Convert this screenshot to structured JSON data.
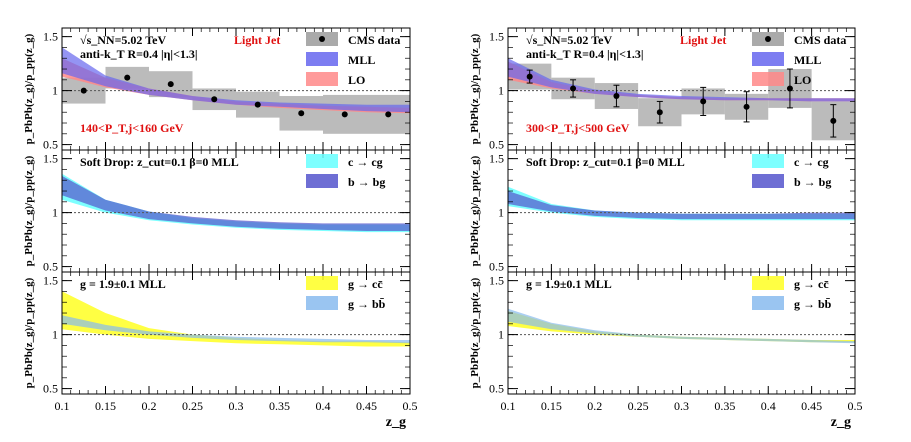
{
  "figure": {
    "columns": [
      {
        "xlabel": "z_g",
        "panels": [
          {
            "annotations": [
              {
                "text": "√s_NN=5.02 TeV",
                "pos": "top-left"
              },
              {
                "text": "anti-k_T R=0.4 |η|<1.3|",
                "pos": "top-left-2"
              },
              {
                "text": "Light Jet",
                "pos": "top-center",
                "color": "#e01010"
              },
              {
                "text": "140<P_T,j<160 GeV",
                "pos": "bottom-left",
                "color": "#e01010"
              }
            ],
            "legend": [
              "CMS data",
              "MLL",
              "LO"
            ]
          },
          {
            "annotations": [
              {
                "text": "Soft Drop: z_cut=0.1 β=0    MLL",
                "pos": "top-left"
              }
            ],
            "legend": [
              "c → cg",
              "b → bg"
            ]
          },
          {
            "annotations": [
              {
                "text": "g = 1.9±0.1    MLL",
                "pos": "top-left"
              }
            ],
            "legend": [
              "g → cc̄",
              "g → bb̄"
            ]
          }
        ]
      },
      {
        "xlabel": "z_g",
        "panels": [
          {
            "annotations": [
              {
                "text": "√s_NN=5.02 TeV",
                "pos": "top-left"
              },
              {
                "text": "anti-k_T R=0.4 |η|<1.3|",
                "pos": "top-left-2"
              },
              {
                "text": "Light Jet",
                "pos": "top-center",
                "color": "#e01010"
              },
              {
                "text": "300<P_T,j<500 GeV",
                "pos": "bottom-left",
                "color": "#e01010"
              }
            ],
            "legend": [
              "CMS data",
              "MLL",
              "LO"
            ]
          },
          {
            "annotations": [
              {
                "text": "Soft Drop: z_cut=0.1 β=0    MLL",
                "pos": "top-left"
              }
            ],
            "legend": [
              "c → cg",
              "b → bg"
            ]
          },
          {
            "annotations": [
              {
                "text": "g = 1.9±0.1    MLL",
                "pos": "top-left"
              }
            ],
            "legend": [
              "g → cc̄",
              "g → bb̄"
            ]
          }
        ]
      }
    ]
  },
  "chart_data": [
    {
      "type": "band",
      "panel": "left-top",
      "xlabel": "",
      "ylabel": "p_PbPb(z_g)/p_pp(z_g)",
      "xlim": [
        0.1,
        0.5
      ],
      "ylim": [
        0.45,
        1.58
      ],
      "x_ticks": [
        0.1,
        0.15,
        0.2,
        0.25,
        0.3,
        0.35,
        0.4,
        0.45,
        0.5
      ],
      "y_ticks": [
        0.5,
        1,
        1.5
      ],
      "reference_line": 1,
      "data_points": {
        "name": "CMS data",
        "x": [
          0.125,
          0.175,
          0.225,
          0.275,
          0.325,
          0.375,
          0.425,
          0.475
        ],
        "y": [
          1.0,
          1.12,
          1.06,
          0.92,
          0.87,
          0.79,
          0.78,
          0.78
        ],
        "yerr": [
          0.0,
          0.0,
          0.0,
          0.0,
          0.0,
          0.0,
          0.0,
          0.0
        ],
        "syst": [
          0.12,
          0.1,
          0.12,
          0.1,
          0.12,
          0.16,
          0.18,
          0.18
        ]
      },
      "series": [
        {
          "name": "LO",
          "color": "#ff8888",
          "x": [
            0.1,
            0.15,
            0.2,
            0.25,
            0.3,
            0.35,
            0.4,
            0.45,
            0.5
          ],
          "lower": [
            1.13,
            1.03,
            0.96,
            0.91,
            0.87,
            0.84,
            0.82,
            0.8,
            0.79
          ],
          "upper": [
            1.3,
            1.12,
            1.02,
            0.95,
            0.9,
            0.88,
            0.86,
            0.85,
            0.84
          ]
        },
        {
          "name": "MLL",
          "color": "#6666ee",
          "x": [
            0.1,
            0.15,
            0.2,
            0.25,
            0.3,
            0.35,
            0.4,
            0.45,
            0.5
          ],
          "lower": [
            1.16,
            1.04,
            0.96,
            0.91,
            0.87,
            0.85,
            0.83,
            0.81,
            0.8
          ],
          "upper": [
            1.4,
            1.14,
            1.02,
            0.95,
            0.91,
            0.89,
            0.88,
            0.87,
            0.87
          ]
        }
      ]
    },
    {
      "type": "band",
      "panel": "left-middle",
      "xlabel": "",
      "ylabel": "p_PbPb(z_g)/p_pp(z_g)",
      "xlim": [
        0.1,
        0.5
      ],
      "ylim": [
        0.45,
        1.58
      ],
      "x_ticks": [
        0.1,
        0.15,
        0.2,
        0.25,
        0.3,
        0.35,
        0.4,
        0.45,
        0.5
      ],
      "y_ticks": [
        0.5,
        1,
        1.5
      ],
      "reference_line": 1,
      "series": [
        {
          "name": "c → cg",
          "color": "#66ffff",
          "x": [
            0.1,
            0.15,
            0.2,
            0.25,
            0.3,
            0.35,
            0.4,
            0.45,
            0.5
          ],
          "lower": [
            1.12,
            1.0,
            0.93,
            0.89,
            0.86,
            0.84,
            0.83,
            0.82,
            0.82
          ],
          "upper": [
            1.36,
            1.12,
            1.01,
            0.95,
            0.92,
            0.9,
            0.89,
            0.89,
            0.89
          ]
        },
        {
          "name": "b → bg",
          "color": "#5555cc",
          "x": [
            0.1,
            0.15,
            0.2,
            0.25,
            0.3,
            0.35,
            0.4,
            0.45,
            0.5
          ],
          "lower": [
            1.16,
            1.02,
            0.94,
            0.9,
            0.87,
            0.85,
            0.84,
            0.83,
            0.83
          ],
          "upper": [
            1.34,
            1.12,
            1.01,
            0.96,
            0.93,
            0.91,
            0.9,
            0.9,
            0.9
          ]
        }
      ]
    },
    {
      "type": "band",
      "panel": "left-bottom",
      "xlabel": "z_g",
      "ylabel": "p_PbPb(z_g)/p_pp(z_g)",
      "xlim": [
        0.1,
        0.5
      ],
      "ylim": [
        0.45,
        1.58
      ],
      "x_ticks": [
        0.1,
        0.15,
        0.2,
        0.25,
        0.3,
        0.35,
        0.4,
        0.45,
        0.5
      ],
      "y_ticks": [
        0.5,
        1,
        1.5
      ],
      "reference_line": 1,
      "series": [
        {
          "name": "g → cc̄",
          "color": "#ffff22",
          "x": [
            0.1,
            0.15,
            0.2,
            0.25,
            0.3,
            0.35,
            0.4,
            0.45,
            0.5
          ],
          "lower": [
            1.05,
            1.0,
            0.96,
            0.94,
            0.92,
            0.91,
            0.9,
            0.89,
            0.89
          ],
          "upper": [
            1.4,
            1.2,
            1.06,
            1.0,
            0.97,
            0.95,
            0.94,
            0.94,
            0.93
          ]
        },
        {
          "name": "g → bb̄",
          "color": "#88bbee",
          "x": [
            0.1,
            0.15,
            0.2,
            0.25,
            0.3,
            0.35,
            0.4,
            0.45,
            0.5
          ],
          "lower": [
            1.1,
            1.04,
            1.0,
            0.97,
            0.95,
            0.94,
            0.93,
            0.93,
            0.92
          ],
          "upper": [
            1.18,
            1.09,
            1.03,
            1.0,
            0.98,
            0.97,
            0.96,
            0.95,
            0.95
          ]
        }
      ]
    },
    {
      "type": "band",
      "panel": "right-top",
      "xlabel": "",
      "ylabel": "p_PbPb(z_g)/p_pp(z_g)",
      "xlim": [
        0.1,
        0.5
      ],
      "ylim": [
        0.45,
        1.58
      ],
      "x_ticks": [
        0.1,
        0.15,
        0.2,
        0.25,
        0.3,
        0.35,
        0.4,
        0.45,
        0.5
      ],
      "y_ticks": [
        0.5,
        1,
        1.5
      ],
      "reference_line": 1,
      "data_points": {
        "name": "CMS data",
        "x": [
          0.125,
          0.175,
          0.225,
          0.275,
          0.325,
          0.375,
          0.425,
          0.475
        ],
        "y": [
          1.13,
          1.02,
          0.95,
          0.8,
          0.9,
          0.85,
          1.02,
          0.72
        ],
        "yerr": [
          0.06,
          0.08,
          0.1,
          0.1,
          0.13,
          0.14,
          0.18,
          0.15
        ],
        "syst": [
          0.12,
          0.1,
          0.12,
          0.13,
          0.12,
          0.12,
          0.18,
          0.18
        ]
      },
      "series": [
        {
          "name": "LO",
          "color": "#ff8888",
          "x": [
            0.1,
            0.15,
            0.2,
            0.25,
            0.3,
            0.35,
            0.4,
            0.45,
            0.5
          ],
          "lower": [
            1.1,
            1.02,
            0.97,
            0.94,
            0.92,
            0.91,
            0.91,
            0.9,
            0.9
          ],
          "upper": [
            1.27,
            1.08,
            1.0,
            0.96,
            0.94,
            0.93,
            0.93,
            0.93,
            0.93
          ]
        },
        {
          "name": "MLL",
          "color": "#6666ee",
          "x": [
            0.1,
            0.15,
            0.2,
            0.25,
            0.3,
            0.35,
            0.4,
            0.45,
            0.5
          ],
          "lower": [
            1.13,
            1.03,
            0.97,
            0.94,
            0.92,
            0.91,
            0.91,
            0.9,
            0.9
          ],
          "upper": [
            1.3,
            1.1,
            1.01,
            0.97,
            0.95,
            0.94,
            0.93,
            0.93,
            0.93
          ]
        }
      ]
    },
    {
      "type": "band",
      "panel": "right-middle",
      "xlabel": "",
      "ylabel": "p_PbPb(z_g)/p_pp(z_g)",
      "xlim": [
        0.1,
        0.5
      ],
      "ylim": [
        0.45,
        1.58
      ],
      "x_ticks": [
        0.1,
        0.15,
        0.2,
        0.25,
        0.3,
        0.35,
        0.4,
        0.45,
        0.5
      ],
      "y_ticks": [
        0.5,
        1,
        1.5
      ],
      "reference_line": 1,
      "series": [
        {
          "name": "c → cg",
          "color": "#66ffff",
          "x": [
            0.1,
            0.15,
            0.2,
            0.25,
            0.3,
            0.35,
            0.4,
            0.45,
            0.5
          ],
          "lower": [
            1.06,
            1.0,
            0.96,
            0.94,
            0.93,
            0.93,
            0.93,
            0.93,
            0.93
          ],
          "upper": [
            1.24,
            1.08,
            1.02,
            1.0,
            0.99,
            0.99,
            0.99,
            0.99,
            0.99
          ]
        },
        {
          "name": "b → bg",
          "color": "#5555cc",
          "x": [
            0.1,
            0.15,
            0.2,
            0.25,
            0.3,
            0.35,
            0.4,
            0.45,
            0.5
          ],
          "lower": [
            1.08,
            1.01,
            0.97,
            0.95,
            0.94,
            0.94,
            0.94,
            0.94,
            0.94
          ],
          "upper": [
            1.2,
            1.07,
            1.02,
            1.0,
            0.99,
            0.99,
            0.99,
            1.0,
            1.0
          ]
        }
      ]
    },
    {
      "type": "band",
      "panel": "right-bottom",
      "xlabel": "z_g",
      "ylabel": "p_PbPb(z_g)/p_pp(z_g)",
      "xlim": [
        0.1,
        0.5
      ],
      "ylim": [
        0.45,
        1.58
      ],
      "x_ticks": [
        0.1,
        0.15,
        0.2,
        0.25,
        0.3,
        0.35,
        0.4,
        0.45,
        0.5
      ],
      "y_ticks": [
        0.5,
        1,
        1.5
      ],
      "reference_line": 1,
      "series": [
        {
          "name": "g → cc̄",
          "color": "#ffff22",
          "x": [
            0.1,
            0.15,
            0.2,
            0.25,
            0.3,
            0.35,
            0.4,
            0.45,
            0.5
          ],
          "lower": [
            1.08,
            1.03,
            1.0,
            0.98,
            0.96,
            0.95,
            0.94,
            0.93,
            0.93
          ],
          "upper": [
            1.22,
            1.1,
            1.03,
            1.0,
            0.98,
            0.97,
            0.96,
            0.95,
            0.95
          ]
        },
        {
          "name": "g → bb̄",
          "color": "#88bbee",
          "x": [
            0.1,
            0.15,
            0.2,
            0.25,
            0.3,
            0.35,
            0.4,
            0.45,
            0.5
          ],
          "lower": [
            1.12,
            1.05,
            1.01,
            0.98,
            0.96,
            0.95,
            0.94,
            0.93,
            0.92
          ],
          "upper": [
            1.24,
            1.11,
            1.04,
            1.0,
            0.98,
            0.97,
            0.96,
            0.95,
            0.94
          ]
        }
      ]
    }
  ]
}
